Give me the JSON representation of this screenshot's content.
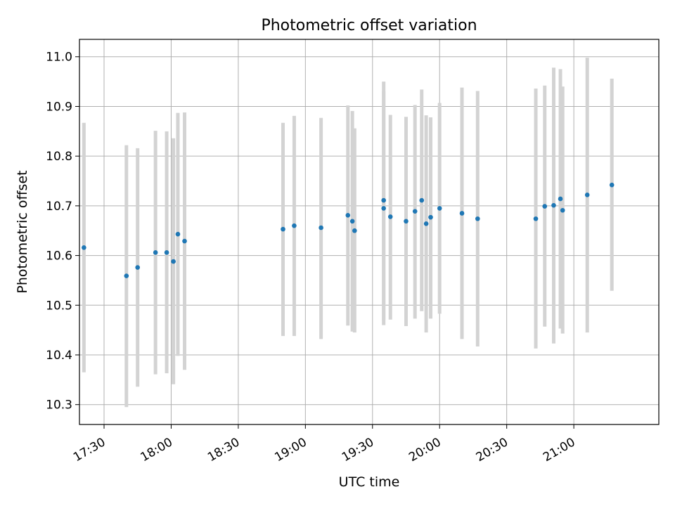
{
  "chart_data": {
    "type": "scatter",
    "title": "Photometric offset variation",
    "xlabel": "UTC time",
    "ylabel": "Photometric offset",
    "x_ticks": [
      "17:30",
      "18:00",
      "18:30",
      "19:00",
      "19:30",
      "20:00",
      "20:30",
      "21:00"
    ],
    "y_ticks": [
      "10.3",
      "10.4",
      "10.5",
      "10.6",
      "10.7",
      "10.8",
      "10.9",
      "11.0"
    ],
    "xlim": [
      "17:19",
      "21:38"
    ],
    "ylim": [
      10.26,
      11.035
    ],
    "grid": true,
    "colors": {
      "point": "#1f77b4",
      "errorbar": "#d3d3d3",
      "grid": "#b0b0b0"
    },
    "series": [
      {
        "points": [
          {
            "x": "17:21",
            "y": 10.616,
            "ylow": 10.365,
            "yhigh": 10.867
          },
          {
            "x": "17:40",
            "y": 10.559,
            "ylow": 10.295,
            "yhigh": 10.822
          },
          {
            "x": "17:45",
            "y": 10.576,
            "ylow": 10.336,
            "yhigh": 10.816
          },
          {
            "x": "17:53",
            "y": 10.606,
            "ylow": 10.361,
            "yhigh": 10.851
          },
          {
            "x": "17:58",
            "y": 10.606,
            "ylow": 10.363,
            "yhigh": 10.85
          },
          {
            "x": "18:01",
            "y": 10.588,
            "ylow": 10.341,
            "yhigh": 10.836
          },
          {
            "x": "18:03",
            "y": 10.643,
            "ylow": 10.398,
            "yhigh": 10.887
          },
          {
            "x": "18:06",
            "y": 10.629,
            "ylow": 10.37,
            "yhigh": 10.888
          },
          {
            "x": "18:50",
            "y": 10.653,
            "ylow": 10.438,
            "yhigh": 10.867
          },
          {
            "x": "18:55",
            "y": 10.66,
            "ylow": 10.438,
            "yhigh": 10.881
          },
          {
            "x": "19:07",
            "y": 10.656,
            "ylow": 10.432,
            "yhigh": 10.877
          },
          {
            "x": "19:19",
            "y": 10.681,
            "ylow": 10.459,
            "yhigh": 10.902
          },
          {
            "x": "19:21",
            "y": 10.669,
            "ylow": 10.447,
            "yhigh": 10.891
          },
          {
            "x": "19:22",
            "y": 10.65,
            "ylow": 10.445,
            "yhigh": 10.856
          },
          {
            "x": "19:35",
            "y": 10.695,
            "ylow": 10.46,
            "yhigh": 10.95
          },
          {
            "x": "19:35",
            "y": 10.711,
            "ylow": 10.47,
            "yhigh": 10.93
          },
          {
            "x": "19:38",
            "y": 10.678,
            "ylow": 10.471,
            "yhigh": 10.883
          },
          {
            "x": "19:45",
            "y": 10.669,
            "ylow": 10.458,
            "yhigh": 10.879
          },
          {
            "x": "19:49",
            "y": 10.689,
            "ylow": 10.473,
            "yhigh": 10.903
          },
          {
            "x": "19:52",
            "y": 10.711,
            "ylow": 10.488,
            "yhigh": 10.934
          },
          {
            "x": "19:54",
            "y": 10.664,
            "ylow": 10.445,
            "yhigh": 10.882
          },
          {
            "x": "19:56",
            "y": 10.677,
            "ylow": 10.473,
            "yhigh": 10.878
          },
          {
            "x": "20:00",
            "y": 10.695,
            "ylow": 10.483,
            "yhigh": 10.907
          },
          {
            "x": "20:10",
            "y": 10.685,
            "ylow": 10.432,
            "yhigh": 10.938
          },
          {
            "x": "20:17",
            "y": 10.674,
            "ylow": 10.417,
            "yhigh": 10.931
          },
          {
            "x": "20:43",
            "y": 10.674,
            "ylow": 10.413,
            "yhigh": 10.936
          },
          {
            "x": "20:47",
            "y": 10.699,
            "ylow": 10.457,
            "yhigh": 10.942
          },
          {
            "x": "20:51",
            "y": 10.701,
            "ylow": 10.423,
            "yhigh": 10.978
          },
          {
            "x": "20:54",
            "y": 10.714,
            "ylow": 10.453,
            "yhigh": 10.975
          },
          {
            "x": "20:55",
            "y": 10.691,
            "ylow": 10.443,
            "yhigh": 10.94
          },
          {
            "x": "21:06",
            "y": 10.722,
            "ylow": 10.445,
            "yhigh": 10.998
          },
          {
            "x": "21:17",
            "y": 10.742,
            "ylow": 10.529,
            "yhigh": 10.956
          }
        ]
      }
    ]
  }
}
